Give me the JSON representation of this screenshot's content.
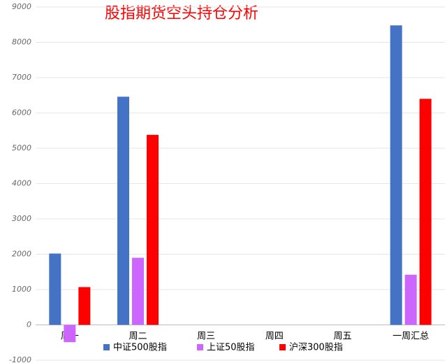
{
  "chart_data": {
    "type": "bar",
    "title": "股指期货空头持仓分析",
    "categories": [
      "周一",
      "周二",
      "周三",
      "周四",
      "周五",
      "一周汇总"
    ],
    "series": [
      {
        "name": "中证500股指",
        "color": "#4472c4",
        "values": [
          2020,
          6460,
          null,
          null,
          null,
          8480
        ]
      },
      {
        "name": "上证50股指",
        "color": "#cc66ff",
        "values": [
          -490,
          1900,
          null,
          null,
          null,
          1420
        ]
      },
      {
        "name": "沪深300股指",
        "color": "#ff0000",
        "values": [
          1070,
          5380,
          null,
          null,
          null,
          6400
        ]
      }
    ],
    "ylim": [
      -1000,
      9000
    ],
    "yticks": [
      -1000,
      0,
      1000,
      2000,
      3000,
      4000,
      5000,
      6000,
      7000,
      8000,
      9000
    ],
    "grid": true,
    "legend": "bottom"
  }
}
